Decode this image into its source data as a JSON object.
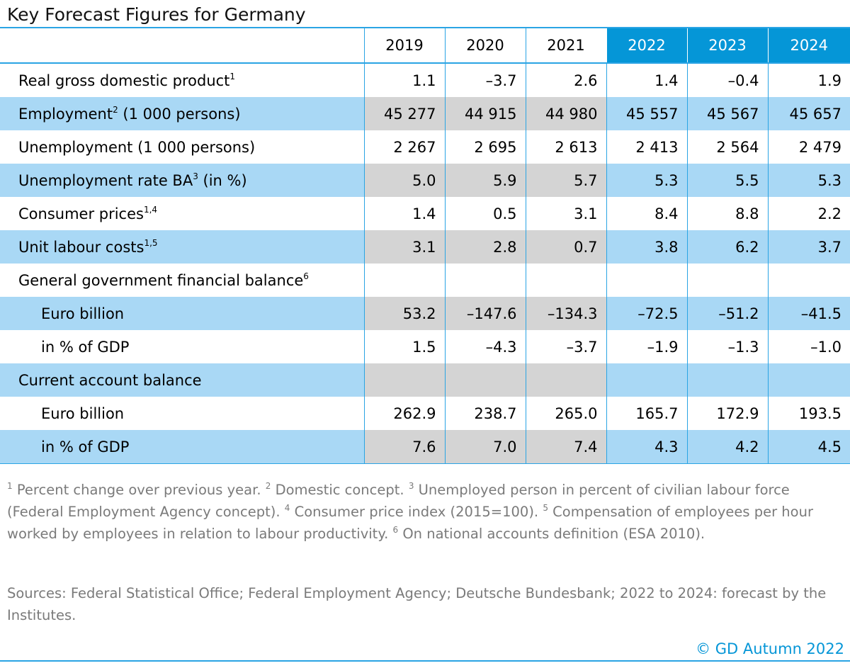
{
  "title": "Key Forecast Figures for Germany",
  "colors": {
    "accent": "#0596d7",
    "shade_forecast": "#a9d8f5",
    "shade_history": "#d4d4d4",
    "rule": "#2aa4e4"
  },
  "chart_data": {
    "type": "table",
    "title": "Key Forecast Figures for Germany",
    "columns": [
      "2019",
      "2020",
      "2021",
      "2022",
      "2023",
      "2024"
    ],
    "forecast_columns": [
      "2022",
      "2023",
      "2024"
    ],
    "rows": [
      {
        "label": "Real gross domestic product",
        "sup": "1",
        "indent": false,
        "shaded": false,
        "values": [
          "1.1",
          "–3.7",
          "2.6",
          "1.4",
          "–0.4",
          "1.9"
        ]
      },
      {
        "label": "Employment",
        "sup": "2",
        "suffix": " (1 000 persons)",
        "indent": false,
        "shaded": true,
        "values": [
          "45 277",
          "44 915",
          "44 980",
          "45 557",
          "45 567",
          "45 657"
        ]
      },
      {
        "label": "Unemployment (1 000 persons)",
        "sup": "",
        "indent": false,
        "shaded": false,
        "values": [
          "2 267",
          "2 695",
          "2 613",
          "2 413",
          "2 564",
          "2 479"
        ]
      },
      {
        "label": "Unemployment rate BA",
        "sup": "3",
        "suffix": " (in %)",
        "indent": false,
        "shaded": true,
        "values": [
          "5.0",
          "5.9",
          "5.7",
          "5.3",
          "5.5",
          "5.3"
        ]
      },
      {
        "label": "Consumer prices",
        "sup": "1,4",
        "indent": false,
        "shaded": false,
        "values": [
          "1.4",
          "0.5",
          "3.1",
          "8.4",
          "8.8",
          "2.2"
        ]
      },
      {
        "label": "Unit labour costs",
        "sup": "1,5",
        "indent": false,
        "shaded": true,
        "values": [
          "3.1",
          "2.8",
          "0.7",
          "3.8",
          "6.2",
          "3.7"
        ]
      },
      {
        "label": "General government financial balance",
        "sup": "6",
        "indent": false,
        "shaded": false,
        "values": [
          "",
          "",
          "",
          "",
          "",
          ""
        ]
      },
      {
        "label": "Euro billion",
        "sup": "",
        "indent": true,
        "shaded": true,
        "values": [
          "53.2",
          "–147.6",
          "–134.3",
          "–72.5",
          "–51.2",
          "–41.5"
        ]
      },
      {
        "label": "in % of GDP",
        "sup": "",
        "indent": true,
        "shaded": false,
        "values": [
          "1.5",
          "–4.3",
          "–3.7",
          "–1.9",
          "–1.3",
          "–1.0"
        ]
      },
      {
        "label": "Current account balance",
        "sup": "",
        "indent": false,
        "shaded": true,
        "values": [
          "",
          "",
          "",
          "",
          "",
          ""
        ]
      },
      {
        "label": "Euro billion",
        "sup": "",
        "indent": true,
        "shaded": false,
        "values": [
          "262.9",
          "238.7",
          "265.0",
          "165.7",
          "172.9",
          "193.5"
        ]
      },
      {
        "label": "in % of GDP",
        "sup": "",
        "indent": true,
        "shaded": true,
        "values": [
          "7.6",
          "7.0",
          "7.4",
          "4.3",
          "4.2",
          "4.5"
        ]
      }
    ]
  },
  "footnotes": [
    {
      "num": "1",
      "text": " Percent change over previous year. "
    },
    {
      "num": "2",
      "text": " Domestic concept. "
    },
    {
      "num": "3",
      "text": " Unemployed person in percent of civilian labour force (Federal Employment Agency concept). "
    },
    {
      "num": "4",
      "text": " Consumer price index (2015=100). "
    },
    {
      "num": "5",
      "text": " Compensation of employees per hour worked by employees in relation to labour productivity. "
    },
    {
      "num": "6",
      "text": " On national accounts definition (ESA 2010)."
    }
  ],
  "sources": "Sources: Federal Statistical Office; Federal Employment Agency; Deutsche Bundesbank; 2022 to 2024: forecast by the Institutes.",
  "copyright": "© GD Autumn 2022"
}
